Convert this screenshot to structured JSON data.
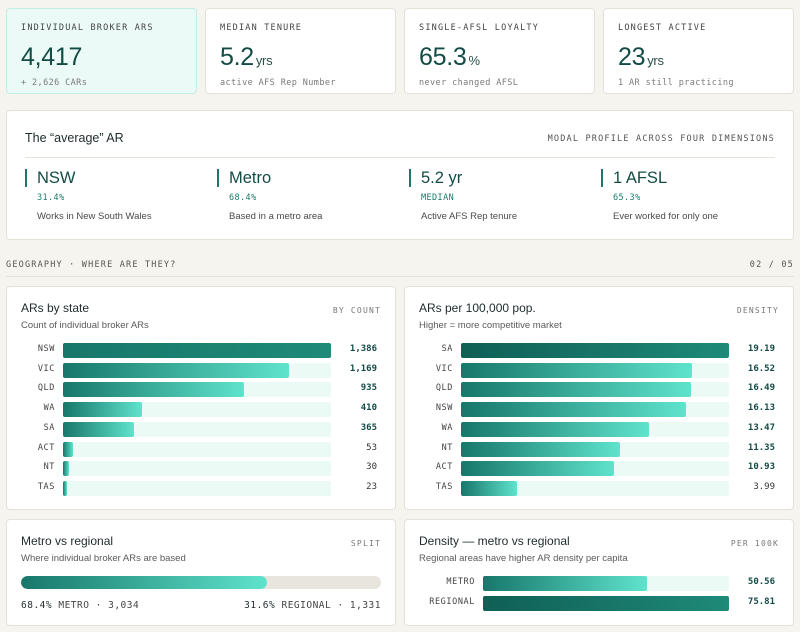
{
  "kpis": [
    {
      "label": "INDIVIDUAL BROKER ARS",
      "value": "4,417",
      "unit": "",
      "sub": "+ 2,626 CARs"
    },
    {
      "label": "MEDIAN TENURE",
      "value": "5.2",
      "unit": "yrs",
      "sub": "active AFS Rep Number"
    },
    {
      "label": "SINGLE-AFSL LOYALTY",
      "value": "65.3",
      "unit": "%",
      "sub": "never changed AFSL"
    },
    {
      "label": "LONGEST ACTIVE",
      "value": "23",
      "unit": "yrs",
      "sub": "1 AR still practicing"
    }
  ],
  "average": {
    "title": "The “average” AR",
    "right_label": "MODAL PROFILE ACROSS FOUR DIMENSIONS",
    "dimensions": [
      {
        "value": "NSW",
        "pct": "31.4%",
        "desc": "Works in New South Wales"
      },
      {
        "value": "Metro",
        "pct": "68.4%",
        "desc": "Based in a metro area"
      },
      {
        "value": "5.2 yr",
        "pct": "MEDIAN",
        "desc": "Active AFS Rep tenure"
      },
      {
        "value": "1 AFSL",
        "pct": "65.3%",
        "desc": "Ever worked for only one"
      }
    ]
  },
  "section": {
    "label": "GEOGRAPHY · WHERE ARE THEY?",
    "page": "02 / 05"
  },
  "panels": {
    "by_state": {
      "title": "ARs by state",
      "subtitle": "Count of individual broker ARs",
      "tag": "BY COUNT"
    },
    "per_pop": {
      "title": "ARs per 100,000 pop.",
      "subtitle": "Higher = more competitive market",
      "tag": "DENSITY"
    },
    "metro_regional": {
      "title": "Metro vs regional",
      "subtitle": "Where individual broker ARs are based",
      "tag": "SPLIT",
      "left_pct": "68.4%",
      "left_text": "METRO · 3,034",
      "right_pct": "31.6%",
      "right_text": "REGIONAL · 1,331"
    },
    "density_mr": {
      "title": "Density — metro vs regional",
      "subtitle": "Regional areas have higher AR density per capita",
      "tag": "PER 100K"
    }
  },
  "chart_data": [
    {
      "type": "bar",
      "title": "ARs by state",
      "categories": [
        "NSW",
        "VIC",
        "QLD",
        "WA",
        "SA",
        "ACT",
        "NT",
        "TAS"
      ],
      "values": [
        1386,
        1169,
        935,
        410,
        365,
        53,
        30,
        23
      ],
      "labels": [
        "1,386",
        "1,169",
        "935",
        "410",
        "365",
        "53",
        "30",
        "23"
      ]
    },
    {
      "type": "bar",
      "title": "ARs per 100,000 pop.",
      "categories": [
        "SA",
        "VIC",
        "QLD",
        "NSW",
        "WA",
        "NT",
        "ACT",
        "TAS"
      ],
      "values": [
        19.19,
        16.52,
        16.49,
        16.13,
        13.47,
        11.35,
        10.93,
        3.99
      ],
      "labels": [
        "19.19",
        "16.52",
        "16.49",
        "16.13",
        "13.47",
        "11.35",
        "10.93",
        "3.99"
      ]
    },
    {
      "type": "bar",
      "title": "Metro vs regional",
      "categories": [
        "METRO",
        "REGIONAL"
      ],
      "values": [
        68.4,
        31.6
      ]
    },
    {
      "type": "bar",
      "title": "Density — metro vs regional",
      "categories": [
        "METRO",
        "REGIONAL"
      ],
      "values": [
        50.56,
        75.81
      ],
      "labels": [
        "50.56",
        "75.81"
      ]
    }
  ],
  "colors": {
    "accent": "#1b7a6c",
    "value_text": "#124c45",
    "bar_start": "#17776a",
    "bar_end": "#5fe3cc",
    "track": "#ecfaf6"
  }
}
